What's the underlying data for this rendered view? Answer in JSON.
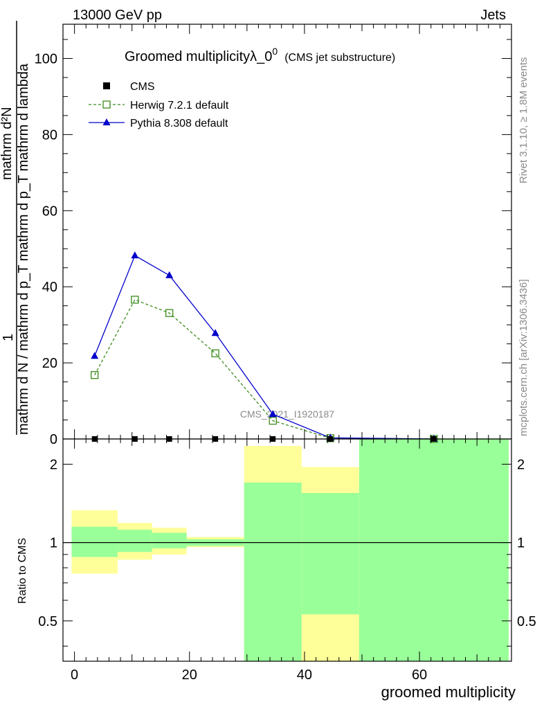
{
  "header": {
    "left": "13000 GeV pp",
    "right": "Jets"
  },
  "title": {
    "main": "Groomed multiplicityλ_0",
    "sup": "0",
    "sub": "(CMS jet substructure)"
  },
  "side_labels": {
    "rivet": "Rivet 3.1.10, ≥ 1.8M events",
    "mcplots": "mcplots.cern.ch [arXiv:1306.3436]"
  },
  "watermark": "CMS_2021_I1920187",
  "ylabel_main": {
    "numerator": "mathrm d²N",
    "denominator": "mathrm d N / mathrm d p_T mathrm d p_T mathrm d lambda",
    "prefix": "1"
  },
  "ylabel_ratio": "Ratio to CMS",
  "xlabel": "groomed multiplicity",
  "colors": {
    "herwig": "#3a8a1a",
    "pythia": "#0000cc",
    "band_inner": "#99ff99",
    "band_outer": "#ffff99"
  },
  "chart_data": [
    {
      "type": "line",
      "panel": "main",
      "xlim": [
        -2,
        76
      ],
      "ylim": [
        0,
        109
      ],
      "yticks": [
        0,
        20,
        40,
        60,
        80,
        100
      ],
      "ytick_labels": [
        "0",
        "20",
        "40",
        "60",
        "80",
        "100"
      ],
      "legend_position": "top-left",
      "series": [
        {
          "name": "CMS",
          "marker": "square-filled",
          "x": [
            3.5,
            10.5,
            16.5,
            24.5,
            34.5,
            44.5,
            62.5
          ],
          "y": [
            0,
            0,
            0,
            0,
            0,
            0,
            0
          ]
        },
        {
          "name": "Herwig 7.2.1 default",
          "marker": "square-open",
          "line": "dashed",
          "x": [
            3.5,
            10.5,
            16.5,
            24.5,
            34.5,
            44.5,
            62.5
          ],
          "y": [
            16.8,
            36.6,
            33.1,
            22.5,
            4.8,
            0.2,
            0.0
          ]
        },
        {
          "name": "Pythia 8.308 default",
          "marker": "triangle-filled",
          "line": "solid",
          "x": [
            3.5,
            10.5,
            16.5,
            24.5,
            34.5,
            44.5,
            62.5
          ],
          "y": [
            21.8,
            48.2,
            43.0,
            27.8,
            6.5,
            0.3,
            0.0
          ]
        }
      ]
    },
    {
      "type": "area",
      "panel": "ratio",
      "scale": "log",
      "xlim": [
        -2,
        76
      ],
      "ylim": [
        0.35,
        2.5
      ],
      "yticks": [
        0.5,
        1,
        2
      ],
      "ytick_labels": [
        "0.5",
        "1",
        "2"
      ],
      "xticks": [
        0,
        20,
        40,
        60
      ],
      "xtick_labels": [
        "0",
        "20",
        "40",
        "60"
      ],
      "reference_line": 1,
      "bins": [
        {
          "x_low": -0.5,
          "x_high": 7.5,
          "inner_low": 0.88,
          "inner_high": 1.15,
          "outer_low": 0.76,
          "outer_high": 1.33
        },
        {
          "x_low": 7.5,
          "x_high": 13.5,
          "inner_low": 0.92,
          "inner_high": 1.12,
          "outer_low": 0.86,
          "outer_high": 1.19
        },
        {
          "x_low": 13.5,
          "x_high": 19.5,
          "inner_low": 0.95,
          "inner_high": 1.09,
          "outer_low": 0.9,
          "outer_high": 1.14
        },
        {
          "x_low": 19.5,
          "x_high": 29.5,
          "inner_low": 0.97,
          "inner_high": 1.03,
          "outer_low": 0.96,
          "outer_high": 1.05
        },
        {
          "x_low": 29.5,
          "x_high": 39.5,
          "inner_low": 0.35,
          "inner_high": 1.7,
          "outer_low": 0.35,
          "outer_high": 2.35
        },
        {
          "x_low": 39.5,
          "x_high": 49.5,
          "inner_low": 0.35,
          "inner_high": 1.55,
          "outer_low": 0.35,
          "outer_high": 1.95,
          "outer_low_extra": [
            0.35,
            0.53
          ]
        },
        {
          "x_low": 49.5,
          "x_high": 75.5,
          "inner_low": 0.35,
          "inner_high": 2.5,
          "outer_low": 0.35,
          "outer_high": 2.5
        }
      ]
    }
  ]
}
